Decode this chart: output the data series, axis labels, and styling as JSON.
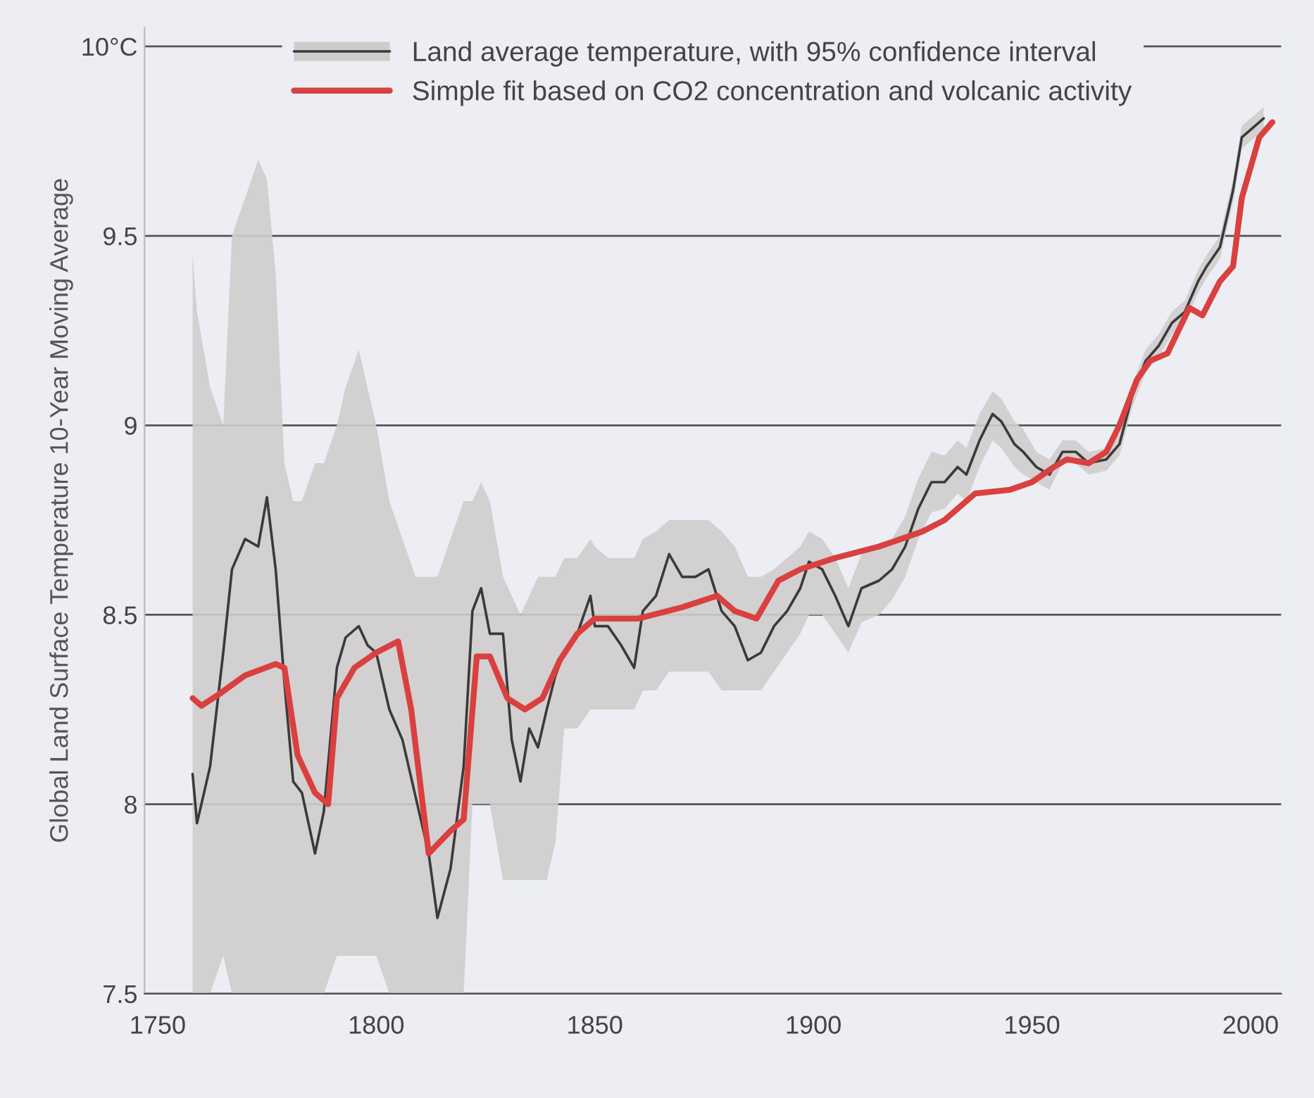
{
  "chart_data": {
    "type": "line",
    "ylabel": "Global Land Surface Temperature 10-Year Moving Average",
    "xlim": [
      1747,
      2007
    ],
    "xticks": [
      1750,
      1800,
      1850,
      1900,
      1950,
      2000
    ],
    "ylim": [
      7.5,
      10.05
    ],
    "yticks": [
      7.5,
      8,
      8.5,
      9,
      9.5,
      {
        "value": 10,
        "label": "10°C"
      }
    ],
    "grid": "y",
    "legend": "top",
    "series": [
      {
        "name": "Land average temperature, with 95% confidence interval",
        "color": "#3a3a3a",
        "x": [
          1758,
          1759,
          1762,
          1765,
          1767,
          1770,
          1773,
          1775,
          1777,
          1779,
          1781,
          1783,
          1786,
          1788,
          1791,
          1793,
          1796,
          1798,
          1800,
          1803,
          1806,
          1809,
          1812,
          1814,
          1817,
          1820,
          1822,
          1824,
          1826,
          1829,
          1831,
          1833,
          1835,
          1837,
          1839,
          1841,
          1843,
          1846,
          1849,
          1850,
          1853,
          1856,
          1859,
          1861,
          1864,
          1867,
          1870,
          1873,
          1876,
          1879,
          1882,
          1885,
          1888,
          1891,
          1894,
          1897,
          1899,
          1902,
          1905,
          1908,
          1911,
          1915,
          1918,
          1921,
          1924,
          1927,
          1930,
          1933,
          1935,
          1938,
          1941,
          1943,
          1946,
          1948,
          1951,
          1954,
          1957,
          1960,
          1963,
          1967,
          1970,
          1973,
          1976,
          1979,
          1982,
          1985,
          1988,
          1990,
          1993,
          1996,
          1998,
          2000,
          2003
        ],
        "values": [
          8.08,
          7.95,
          8.1,
          8.4,
          8.62,
          8.7,
          8.68,
          8.81,
          8.62,
          8.32,
          8.06,
          8.03,
          7.87,
          7.98,
          8.36,
          8.44,
          8.47,
          8.42,
          8.4,
          8.25,
          8.17,
          8.02,
          7.87,
          7.7,
          7.83,
          8.1,
          8.51,
          8.57,
          8.45,
          8.45,
          8.17,
          8.06,
          8.2,
          8.15,
          8.25,
          8.34,
          8.4,
          8.45,
          8.55,
          8.47,
          8.47,
          8.42,
          8.36,
          8.51,
          8.55,
          8.66,
          8.6,
          8.6,
          8.62,
          8.51,
          8.47,
          8.38,
          8.4,
          8.47,
          8.51,
          8.57,
          8.64,
          8.62,
          8.55,
          8.47,
          8.57,
          8.59,
          8.62,
          8.68,
          8.78,
          8.85,
          8.85,
          8.89,
          8.87,
          8.96,
          9.03,
          9.01,
          8.95,
          8.93,
          8.89,
          8.87,
          8.93,
          8.93,
          8.9,
          8.91,
          8.95,
          9.08,
          9.17,
          9.21,
          9.27,
          9.3,
          9.38,
          9.42,
          9.47,
          9.62,
          9.76,
          9.78,
          9.81
        ],
        "lower": [
          7.5,
          7.5,
          7.5,
          7.6,
          7.5,
          7.5,
          7.5,
          7.5,
          7.5,
          7.5,
          7.5,
          7.5,
          7.5,
          7.5,
          7.6,
          7.6,
          7.6,
          7.6,
          7.6,
          7.5,
          7.5,
          7.5,
          7.5,
          7.5,
          7.5,
          7.5,
          8.0,
          8.0,
          8.0,
          7.8,
          7.8,
          7.8,
          7.8,
          7.8,
          7.8,
          7.9,
          8.2,
          8.2,
          8.25,
          8.25,
          8.25,
          8.25,
          8.25,
          8.3,
          8.3,
          8.35,
          8.35,
          8.35,
          8.35,
          8.3,
          8.3,
          8.3,
          8.3,
          8.35,
          8.4,
          8.45,
          8.5,
          8.5,
          8.45,
          8.4,
          8.48,
          8.5,
          8.54,
          8.6,
          8.7,
          8.77,
          8.78,
          8.82,
          8.8,
          8.89,
          8.96,
          8.94,
          8.89,
          8.87,
          8.85,
          8.83,
          8.9,
          8.9,
          8.87,
          8.88,
          8.92,
          9.05,
          9.14,
          9.18,
          9.24,
          9.27,
          9.35,
          9.39,
          9.44,
          9.59,
          9.73,
          9.75,
          9.78
        ],
        "upper": [
          9.45,
          9.3,
          9.1,
          9.0,
          9.5,
          9.6,
          9.7,
          9.65,
          9.4,
          8.9,
          8.8,
          8.8,
          8.9,
          8.9,
          9.0,
          9.1,
          9.2,
          9.1,
          9.0,
          8.8,
          8.7,
          8.6,
          8.6,
          8.6,
          8.7,
          8.8,
          8.8,
          8.85,
          8.8,
          8.6,
          8.55,
          8.5,
          8.55,
          8.6,
          8.6,
          8.6,
          8.65,
          8.65,
          8.7,
          8.68,
          8.65,
          8.65,
          8.65,
          8.7,
          8.72,
          8.75,
          8.75,
          8.75,
          8.75,
          8.72,
          8.68,
          8.6,
          8.6,
          8.62,
          8.65,
          8.68,
          8.72,
          8.7,
          8.65,
          8.57,
          8.66,
          8.68,
          8.7,
          8.76,
          8.86,
          8.93,
          8.92,
          8.96,
          8.94,
          9.03,
          9.09,
          9.07,
          9.01,
          8.99,
          8.93,
          8.91,
          8.96,
          8.96,
          8.93,
          8.94,
          8.98,
          9.11,
          9.2,
          9.24,
          9.3,
          9.33,
          9.41,
          9.45,
          9.5,
          9.65,
          9.79,
          9.81,
          9.84
        ]
      },
      {
        "name": "Simple fit based on CO2 concentration and volcanic activity",
        "color": "#d9403f",
        "x": [
          1758,
          1760,
          1764,
          1770,
          1777,
          1779,
          1782,
          1786,
          1789,
          1791,
          1795,
          1800,
          1805,
          1808,
          1812,
          1817,
          1820,
          1823,
          1826,
          1830,
          1834,
          1838,
          1842,
          1846,
          1850,
          1860,
          1870,
          1878,
          1882,
          1887,
          1892,
          1897,
          1905,
          1915,
          1925,
          1930,
          1937,
          1945,
          1950,
          1955,
          1958,
          1963,
          1967,
          1970,
          1974,
          1977,
          1981,
          1986,
          1989,
          1993,
          1996,
          1998,
          2002,
          2005
        ],
        "values": [
          8.28,
          8.26,
          8.29,
          8.34,
          8.37,
          8.36,
          8.13,
          8.03,
          8.0,
          8.28,
          8.36,
          8.4,
          8.43,
          8.25,
          7.87,
          7.93,
          7.96,
          8.39,
          8.39,
          8.28,
          8.25,
          8.28,
          8.38,
          8.45,
          8.49,
          8.49,
          8.52,
          8.55,
          8.51,
          8.49,
          8.59,
          8.62,
          8.65,
          8.68,
          8.72,
          8.75,
          8.82,
          8.83,
          8.85,
          8.89,
          8.91,
          8.9,
          8.93,
          9.0,
          9.12,
          9.17,
          9.19,
          9.31,
          9.29,
          9.38,
          9.42,
          9.6,
          9.76,
          9.8
        ]
      }
    ]
  }
}
